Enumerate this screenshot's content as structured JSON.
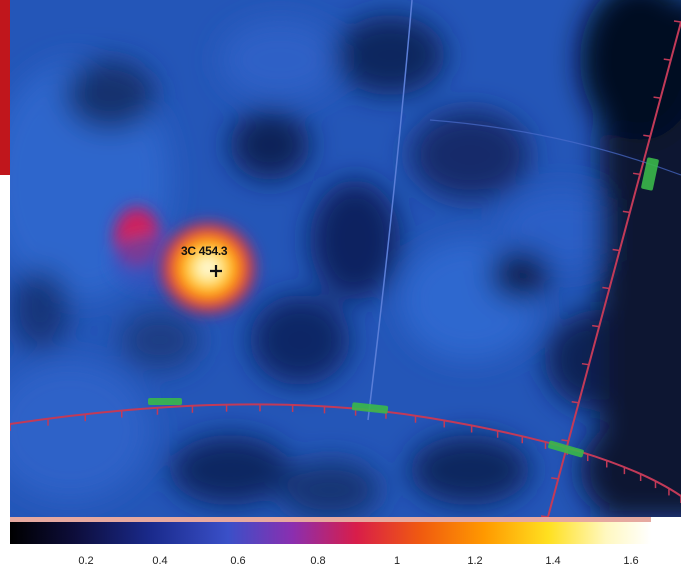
{
  "source": {
    "label": "3C 454.3",
    "marker_icon": "plus-marker-icon"
  },
  "colorbar": {
    "tick_labels": [
      "0.2",
      "0.4",
      "0.6",
      "0.8",
      "1",
      "1.2",
      "1.4",
      "1.6"
    ],
    "colormap": [
      "#000000",
      "#0d0d3a",
      "#1a2a8c",
      "#3a50c8",
      "#8a2fb0",
      "#d81d4a",
      "#f05a10",
      "#ff9900",
      "#ffe020",
      "#fff8c0",
      "#ffffff"
    ]
  },
  "colors": {
    "background_field": "#1f4ca6",
    "coordinate_grid_red": "#c23a58",
    "coordinate_grid_blue": "#5a7ed8",
    "grid_markers_green": "#3ab84a",
    "edge_tab": "#c0161c"
  }
}
